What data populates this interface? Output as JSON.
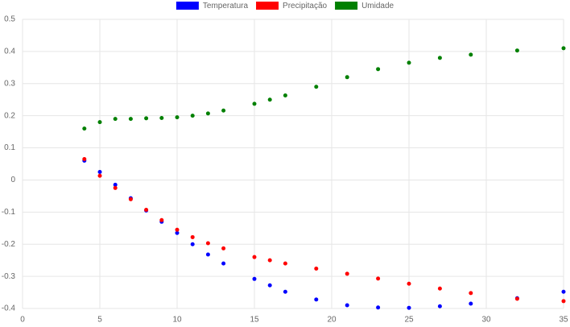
{
  "chart_data": {
    "type": "scatter",
    "x": [
      4,
      5,
      6,
      7,
      8,
      9,
      10,
      11,
      12,
      13,
      15,
      16,
      17,
      19,
      21,
      23,
      25,
      27,
      29,
      32,
      35
    ],
    "series": [
      {
        "name": "Temperatura",
        "color": "#0000ff",
        "values": [
          0.06,
          0.025,
          -0.015,
          -0.057,
          -0.095,
          -0.13,
          -0.165,
          -0.2,
          -0.232,
          -0.26,
          -0.308,
          -0.328,
          -0.348,
          -0.372,
          -0.39,
          -0.397,
          -0.398,
          -0.393,
          -0.385,
          -0.368,
          -0.348
        ]
      },
      {
        "name": "Precipitação",
        "color": "#ff0000",
        "values": [
          0.065,
          0.013,
          -0.025,
          -0.06,
          -0.093,
          -0.125,
          -0.155,
          -0.178,
          -0.197,
          -0.213,
          -0.24,
          -0.25,
          -0.26,
          -0.276,
          -0.292,
          -0.307,
          -0.323,
          -0.338,
          -0.352,
          -0.37,
          -0.377
        ]
      },
      {
        "name": "Umidade",
        "color": "#008000",
        "values": [
          0.16,
          0.18,
          0.19,
          0.19,
          0.192,
          0.193,
          0.195,
          0.2,
          0.207,
          0.216,
          0.237,
          0.25,
          0.263,
          0.29,
          0.32,
          0.345,
          0.365,
          0.38,
          0.39,
          0.403,
          0.41
        ]
      }
    ],
    "xlim": [
      0,
      35
    ],
    "xticks": [
      0,
      5,
      10,
      15,
      20,
      25,
      30,
      35
    ],
    "ylim": [
      -0.4,
      0.5
    ],
    "yticks": [
      0.5,
      0.4,
      0.3,
      0.2,
      0.1,
      0,
      -0.1,
      -0.2,
      -0.3,
      -0.4
    ],
    "grid": true,
    "legend": "top"
  }
}
